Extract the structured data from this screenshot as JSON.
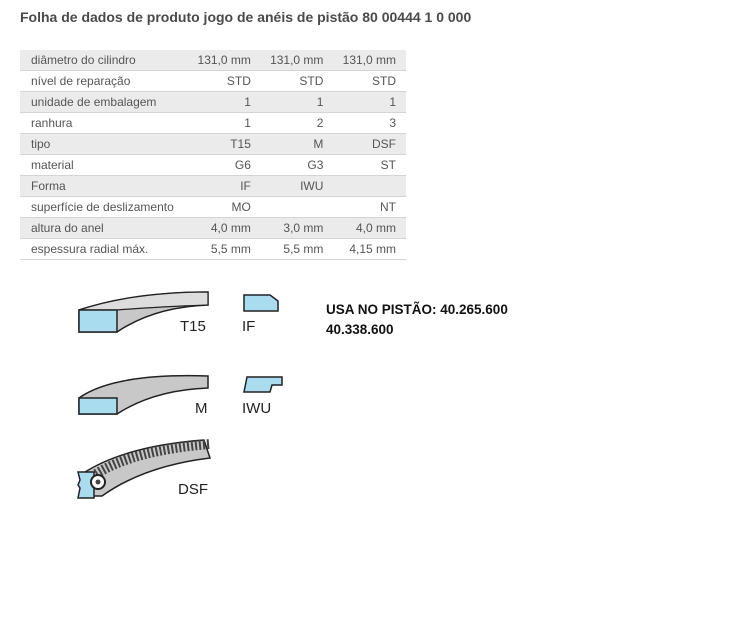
{
  "title": "Folha de dados de produto jogo de anéis de pistão 80 00444 1 0 000",
  "table": [
    {
      "label": "diâmetro do cilindro",
      "values": [
        "131,0 mm",
        "131,0 mm",
        "131,0 mm"
      ]
    },
    {
      "label": "nível de reparação",
      "values": [
        "STD",
        "STD",
        "STD"
      ]
    },
    {
      "label": "unidade de embalagem",
      "values": [
        "1",
        "1",
        "1"
      ]
    },
    {
      "label": "ranhura",
      "values": [
        "1",
        "2",
        "3"
      ]
    },
    {
      "label": "tipo",
      "values": [
        "T15",
        "M",
        "DSF"
      ]
    },
    {
      "label": "material",
      "values": [
        "G6",
        "G3",
        "ST"
      ]
    },
    {
      "label": "Forma",
      "values": [
        "IF",
        "IWU",
        ""
      ]
    },
    {
      "label": "superfície de deslizamento",
      "values": [
        "MO",
        "",
        "NT"
      ]
    },
    {
      "label": "altura do anel",
      "values": [
        "4,0 mm",
        "3,0 mm",
        "4,0 mm"
      ]
    },
    {
      "label": "espessura radial máx.",
      "values": [
        "5,5 mm",
        "5,5 mm",
        "4,15 mm"
      ]
    }
  ],
  "diagrams": {
    "t15": "T15",
    "if": "IF",
    "m": "M",
    "iwu": "IWU",
    "dsf": "DSF"
  },
  "note": {
    "line1": "USA NO PISTÃO: 40.265.600",
    "line2": "40.338.600"
  },
  "colors": {
    "section": "#a9dcef",
    "ring": "#c8c8c8"
  }
}
